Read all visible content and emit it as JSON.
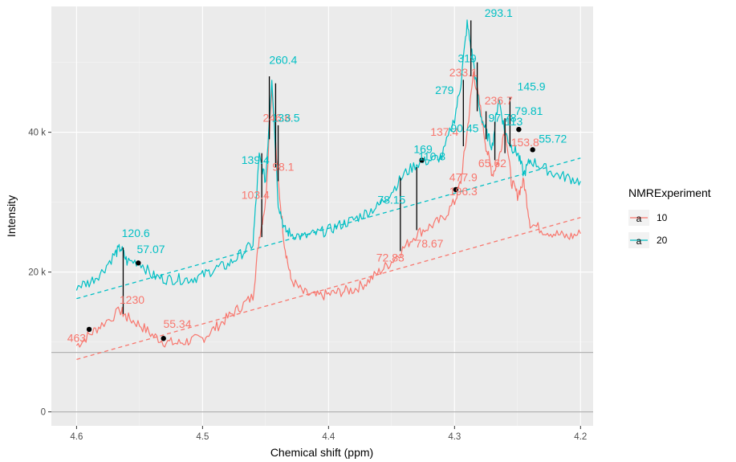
{
  "chart_data": {
    "type": "line",
    "xlabel": "Chemical shift (ppm)",
    "ylabel": "Intensity",
    "x_reversed": true,
    "xlim": [
      4.62,
      4.19
    ],
    "ylim": [
      -2000,
      58000
    ],
    "x_ticks": [
      {
        "value": 4.6,
        "label": "4.6"
      },
      {
        "value": 4.5,
        "label": "4.5"
      },
      {
        "value": 4.4,
        "label": "4.4"
      },
      {
        "value": 4.3,
        "label": "4.3"
      },
      {
        "value": 4.2,
        "label": "4.2"
      }
    ],
    "y_ticks": [
      {
        "value": 0,
        "label": "0"
      },
      {
        "value": 20000,
        "label": "20 k"
      },
      {
        "value": 40000,
        "label": "40 k"
      }
    ],
    "grid": true,
    "legend": {
      "title": "NMRExperiment",
      "placement": "right",
      "key_glyph": "a"
    },
    "colors": {
      "10": "#F8766D",
      "20": "#00BFC4",
      "panel": "#EBEBEB",
      "grid": "#FFFFFF",
      "hline": "#B3B3B3",
      "peak_marks": "#000000"
    },
    "horizontal_lines": [
      0,
      8500
    ],
    "series": [
      {
        "name": "10",
        "baseline": {
          "x": [
            4.6,
            4.2
          ],
          "y": [
            7500,
            27800
          ]
        },
        "x": [
          4.6,
          4.59,
          4.58,
          4.565,
          4.56,
          4.55,
          4.54,
          4.53,
          4.52,
          4.51,
          4.5,
          4.49,
          4.48,
          4.47,
          4.46,
          4.455,
          4.45,
          4.445,
          4.44,
          4.435,
          4.43,
          4.42,
          4.41,
          4.4,
          4.39,
          4.38,
          4.37,
          4.36,
          4.35,
          4.34,
          4.33,
          4.32,
          4.31,
          4.3,
          4.295,
          4.29,
          4.285,
          4.28,
          4.275,
          4.27,
          4.265,
          4.26,
          4.255,
          4.25,
          4.245,
          4.24,
          4.23,
          4.22,
          4.21,
          4.2
        ],
        "y": [
          9500,
          11000,
          12500,
          14500,
          13500,
          12500,
          11000,
          10000,
          9800,
          10200,
          10500,
          12000,
          13500,
          15000,
          16500,
          25000,
          30000,
          46500,
          33000,
          24000,
          19000,
          17000,
          16500,
          16800,
          17200,
          17500,
          18500,
          20000,
          21500,
          23500,
          25500,
          26500,
          27500,
          30000,
          33000,
          40000,
          48500,
          44000,
          38000,
          34000,
          36000,
          41000,
          33000,
          31000,
          33000,
          27000,
          26000,
          25500,
          25000,
          25500
        ]
      },
      {
        "name": "20",
        "baseline": {
          "x": [
            4.6,
            4.2
          ],
          "y": [
            16200,
            36300
          ]
        },
        "x": [
          4.6,
          4.59,
          4.58,
          4.57,
          4.565,
          4.56,
          4.55,
          4.54,
          4.53,
          4.52,
          4.51,
          4.5,
          4.49,
          4.48,
          4.47,
          4.46,
          4.455,
          4.45,
          4.445,
          4.44,
          4.435,
          4.43,
          4.42,
          4.41,
          4.4,
          4.39,
          4.38,
          4.37,
          4.36,
          4.35,
          4.34,
          4.33,
          4.32,
          4.31,
          4.3,
          4.295,
          4.29,
          4.285,
          4.28,
          4.275,
          4.27,
          4.265,
          4.26,
          4.255,
          4.25,
          4.245,
          4.24,
          4.23,
          4.22,
          4.21,
          4.2
        ],
        "y": [
          18000,
          18500,
          20000,
          22500,
          23500,
          21500,
          21500,
          19500,
          19000,
          19000,
          19000,
          19500,
          20500,
          21000,
          22500,
          24000,
          36500,
          33000,
          48000,
          30000,
          26000,
          25500,
          25000,
          25500,
          26000,
          26800,
          27500,
          28500,
          29500,
          31500,
          34000,
          35500,
          36000,
          36500,
          42000,
          47000,
          55500,
          50000,
          43000,
          40000,
          38000,
          45000,
          40000,
          38000,
          37000,
          34000,
          36000,
          35000,
          34000,
          33500,
          33000
        ]
      }
    ],
    "peak_lines": [
      {
        "x": 4.563,
        "y0": 14000,
        "y1": 23500
      },
      {
        "x": 4.453,
        "y0": 25000,
        "y1": 37000
      },
      {
        "x": 4.447,
        "y0": 39000,
        "y1": 48000
      },
      {
        "x": 4.442,
        "y0": 35000,
        "y1": 47000
      },
      {
        "x": 4.44,
        "y0": 33000,
        "y1": 41000
      },
      {
        "x": 4.343,
        "y0": 23000,
        "y1": 33500
      },
      {
        "x": 4.33,
        "y0": 26000,
        "y1": 35000
      },
      {
        "x": 4.293,
        "y0": 38000,
        "y1": 47500
      },
      {
        "x": 4.287,
        "y0": 48000,
        "y1": 56000
      },
      {
        "x": 4.282,
        "y0": 43000,
        "y1": 50000
      },
      {
        "x": 4.275,
        "y0": 39000,
        "y1": 43000
      },
      {
        "x": 4.268,
        "y0": 36000,
        "y1": 41500
      },
      {
        "x": 4.26,
        "y0": 37000,
        "y1": 42000
      },
      {
        "x": 4.256,
        "y0": 38000,
        "y1": 45000
      }
    ],
    "points": [
      {
        "x": 4.59,
        "y": 11800
      },
      {
        "x": 4.551,
        "y": 21300
      },
      {
        "x": 4.531,
        "y": 10500
      },
      {
        "x": 4.326,
        "y": 36000
      },
      {
        "x": 4.299,
        "y": 31800
      },
      {
        "x": 4.249,
        "y": 40400
      },
      {
        "x": 4.238,
        "y": 37500
      }
    ],
    "annotations": [
      {
        "text": "463",
        "x": 4.6,
        "y": 10000,
        "series": "10"
      },
      {
        "text": "1230",
        "x": 4.556,
        "y": 15500,
        "series": "10"
      },
      {
        "text": "55.34",
        "x": 4.52,
        "y": 12000,
        "series": "10"
      },
      {
        "text": "103.4",
        "x": 4.458,
        "y": 30500,
        "series": "10"
      },
      {
        "text": "246.6",
        "x": 4.441,
        "y": 41500,
        "series": "10"
      },
      {
        "text": "98.1",
        "x": 4.436,
        "y": 34500,
        "series": "10"
      },
      {
        "text": "72.83",
        "x": 4.351,
        "y": 21500,
        "series": "10"
      },
      {
        "text": "78.67",
        "x": 4.32,
        "y": 23500,
        "series": "10"
      },
      {
        "text": "137.4",
        "x": 4.308,
        "y": 39500,
        "series": "10"
      },
      {
        "text": "477.9",
        "x": 4.293,
        "y": 33000,
        "series": "10"
      },
      {
        "text": "196.3",
        "x": 4.293,
        "y": 31000,
        "series": "10"
      },
      {
        "text": "233.1",
        "x": 4.293,
        "y": 48000,
        "series": "10"
      },
      {
        "text": "236.7",
        "x": 4.265,
        "y": 44000,
        "series": "10"
      },
      {
        "text": "65.62",
        "x": 4.27,
        "y": 35000,
        "series": "10"
      },
      {
        "text": "153.8",
        "x": 4.244,
        "y": 38000,
        "series": "10"
      },
      {
        "text": "120.6",
        "x": 4.553,
        "y": 25000,
        "series": "20"
      },
      {
        "text": "57.07",
        "x": 4.541,
        "y": 22700,
        "series": "20"
      },
      {
        "text": "139.4",
        "x": 4.458,
        "y": 35500,
        "series": "20"
      },
      {
        "text": "260.4",
        "x": 4.436,
        "y": 49800,
        "series": "20"
      },
      {
        "text": "133.5",
        "x": 4.434,
        "y": 41500,
        "series": "20"
      },
      {
        "text": "78.15",
        "x": 4.35,
        "y": 29800,
        "series": "20"
      },
      {
        "text": "169",
        "x": 4.325,
        "y": 37000,
        "series": "20"
      },
      {
        "text": "110.8",
        "x": 4.318,
        "y": 36000,
        "series": "20"
      },
      {
        "text": "279",
        "x": 4.308,
        "y": 45500,
        "series": "20"
      },
      {
        "text": "319",
        "x": 4.29,
        "y": 50000,
        "series": "20"
      },
      {
        "text": "293.1",
        "x": 4.265,
        "y": 56500,
        "series": "20"
      },
      {
        "text": "90.45",
        "x": 4.292,
        "y": 40000,
        "series": "20"
      },
      {
        "text": "97.78",
        "x": 4.262,
        "y": 41500,
        "series": "20"
      },
      {
        "text": "79.81",
        "x": 4.241,
        "y": 42500,
        "series": "20"
      },
      {
        "text": "145.9",
        "x": 4.239,
        "y": 46000,
        "series": "20"
      },
      {
        "text": "113",
        "x": 4.253,
        "y": 41000,
        "series": "20"
      },
      {
        "text": "55.72",
        "x": 4.222,
        "y": 38500,
        "series": "20"
      }
    ]
  }
}
